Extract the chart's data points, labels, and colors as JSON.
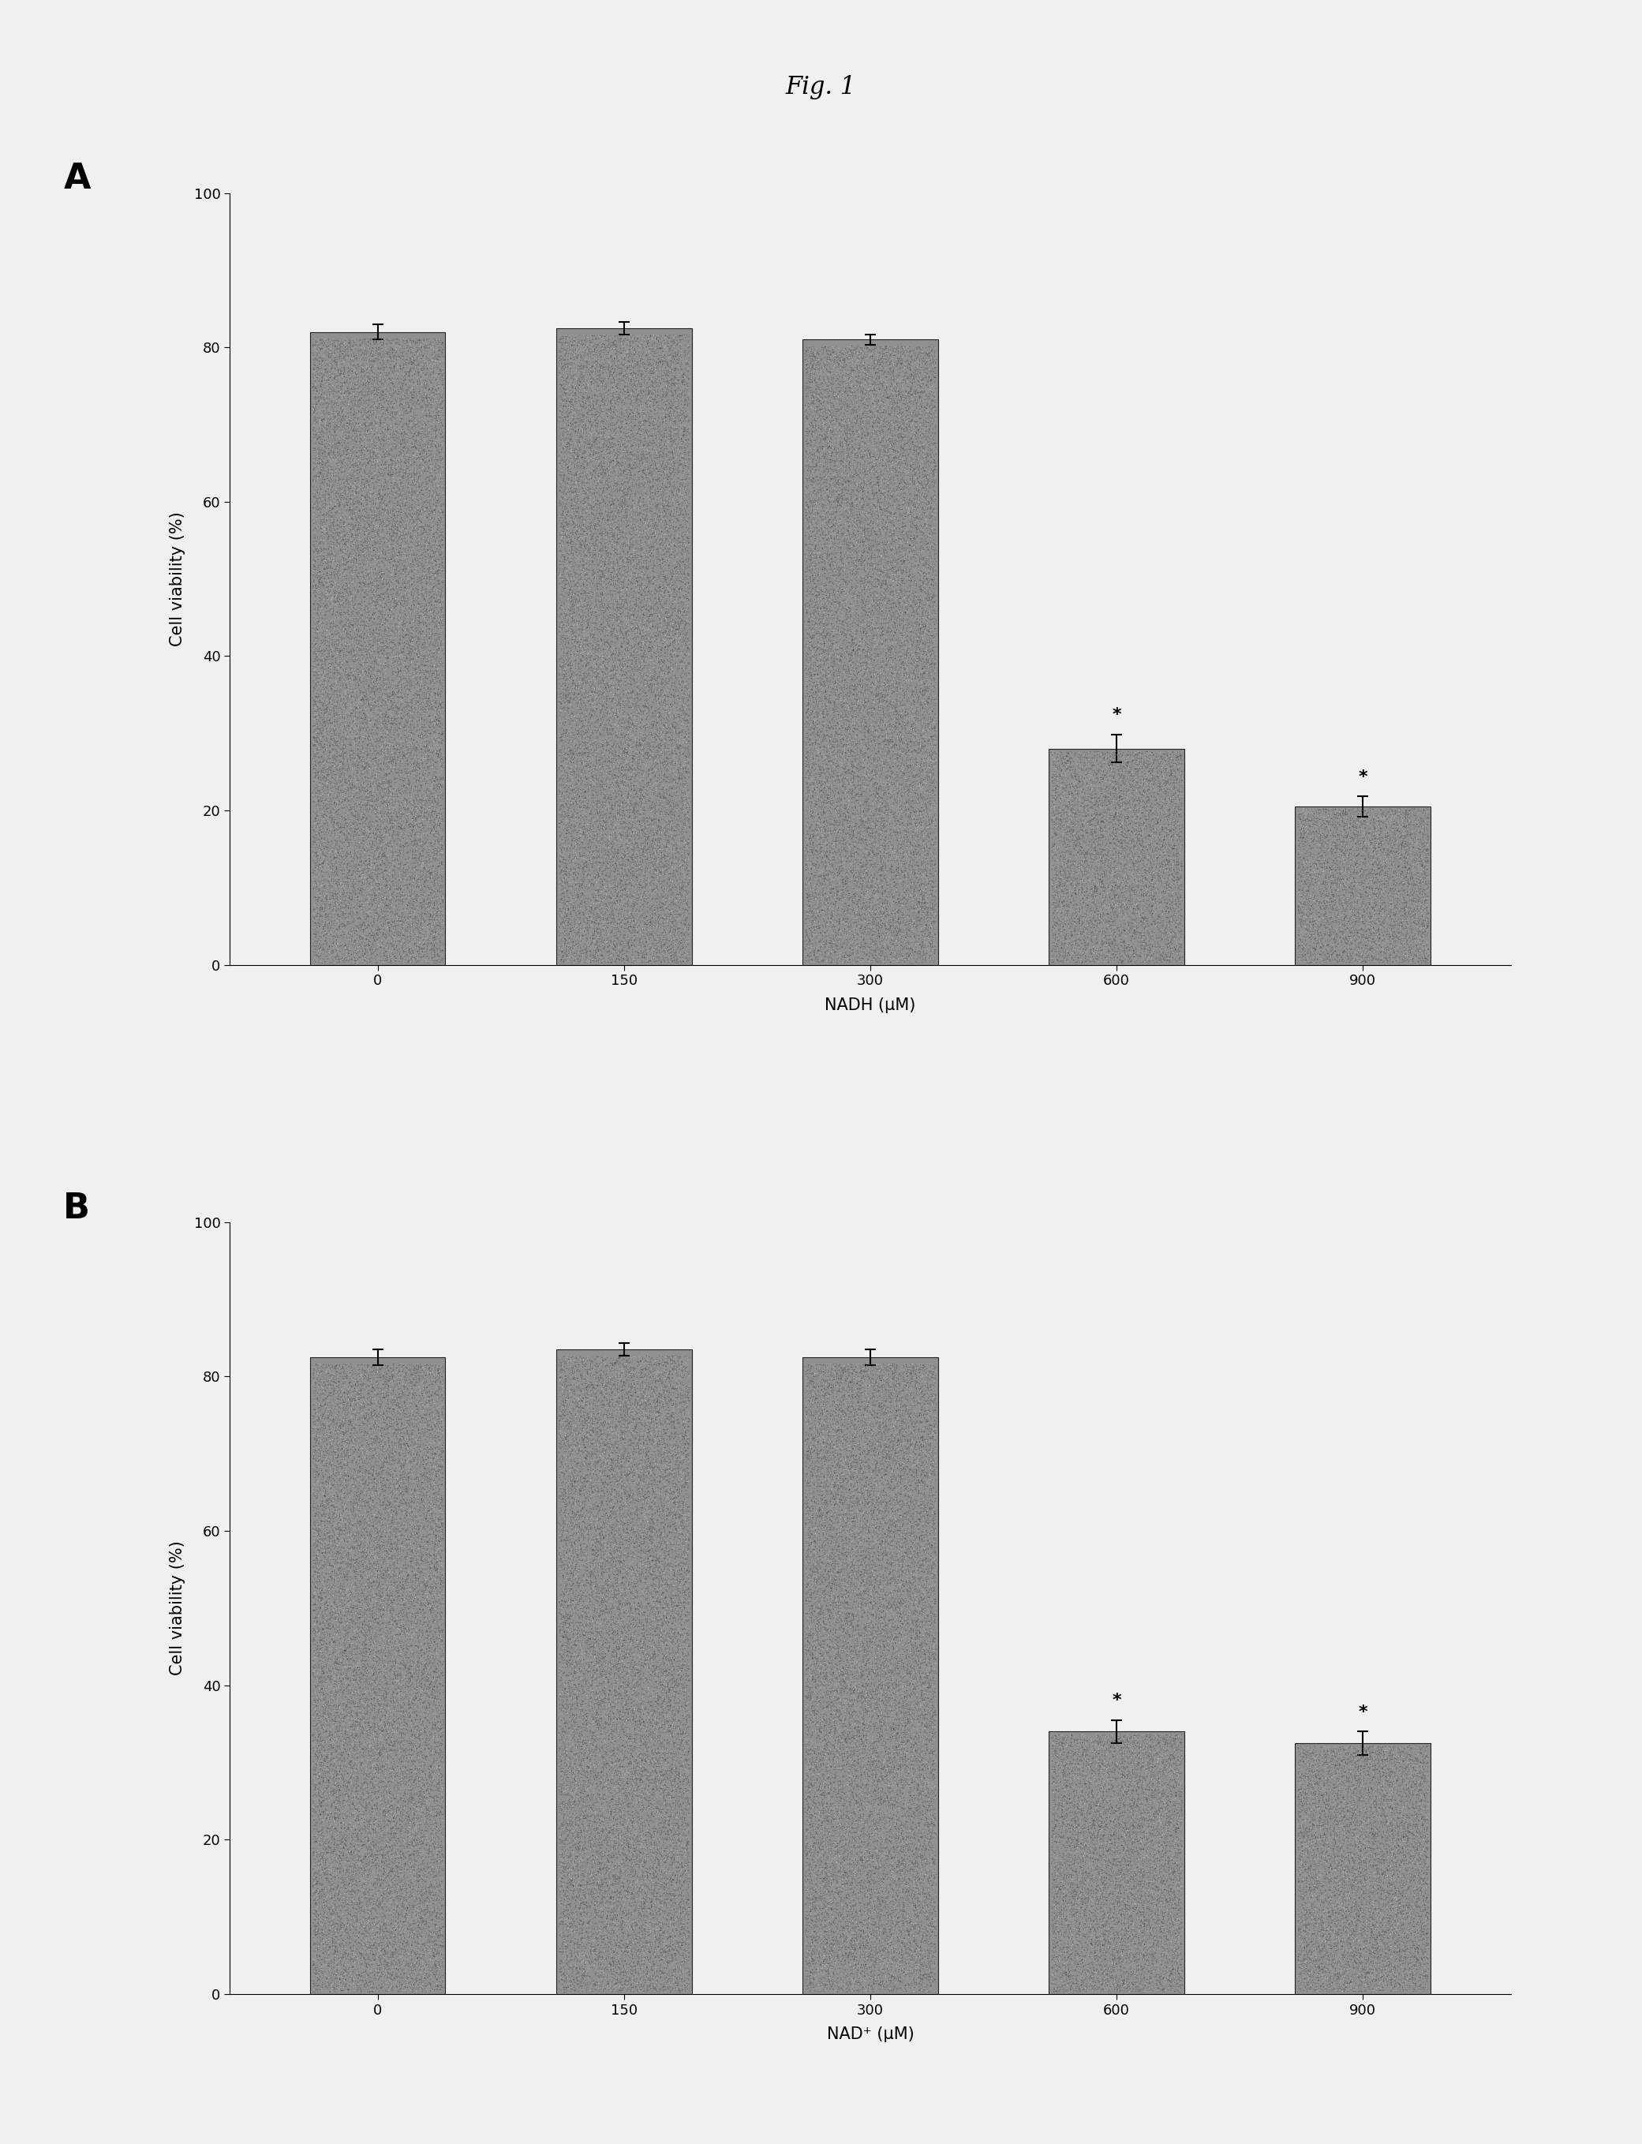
{
  "fig_title": "Fig. 1",
  "panel_A": {
    "label": "A",
    "categories": [
      "0",
      "150",
      "300",
      "600",
      "900"
    ],
    "values": [
      82.0,
      82.5,
      81.0,
      28.0,
      20.5
    ],
    "errors": [
      1.0,
      0.8,
      0.7,
      1.8,
      1.3
    ],
    "significant": [
      false,
      false,
      false,
      true,
      true
    ],
    "xlabel": "NADH (μM)",
    "ylabel": "Cell viability (%)",
    "ylim": [
      0,
      100
    ],
    "yticks": [
      0,
      20,
      40,
      60,
      80,
      100
    ]
  },
  "panel_B": {
    "label": "B",
    "categories": [
      "0",
      "150",
      "300",
      "600",
      "900"
    ],
    "values": [
      82.5,
      83.5,
      82.5,
      34.0,
      32.5
    ],
    "errors": [
      1.0,
      0.8,
      1.0,
      1.5,
      1.5
    ],
    "significant": [
      false,
      false,
      false,
      true,
      true
    ],
    "xlabel": "NAD⁺ (μM)",
    "ylabel": "Cell viability (%)",
    "ylim": [
      0,
      100
    ],
    "yticks": [
      0,
      20,
      40,
      60,
      80,
      100
    ]
  },
  "bar_color": "#909090",
  "bar_edgecolor": "#222222",
  "fig_background": "#f0f0f0",
  "plot_background": "#f0f0f0",
  "bar_width": 0.55,
  "title_fontsize": 22,
  "label_fontsize": 15,
  "tick_fontsize": 13,
  "panel_label_fontsize": 32,
  "star_fontsize": 16
}
